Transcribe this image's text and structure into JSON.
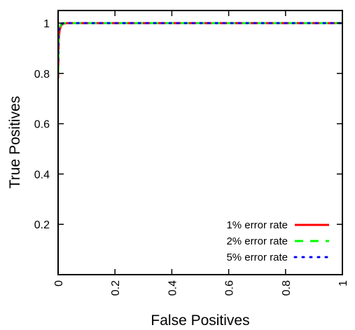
{
  "chart_data": {
    "type": "line",
    "xlabel": "False Positives",
    "ylabel": "True Positives",
    "xlim": [
      0,
      1
    ],
    "ylim": [
      0,
      1.05
    ],
    "x_ticks": [
      "0",
      "0.2",
      "0.4",
      "0.6",
      "0.8",
      "1"
    ],
    "y_ticks": [
      "0.2",
      "0.4",
      "0.6",
      "0.8",
      "1"
    ],
    "grid": false,
    "legend_position": "bottom-right",
    "series": [
      {
        "name": "1% error rate",
        "color": "#ff0000",
        "style": "solid",
        "x": [
          0,
          0.002,
          0.005,
          0.01,
          0.015,
          0.02,
          0.03,
          0.05,
          0.1,
          0.2,
          0.4,
          0.6,
          0.8,
          1.0
        ],
        "y": [
          0.78,
          0.93,
          0.97,
          0.99,
          0.995,
          0.998,
          1.0,
          1.0,
          1.0,
          1.0,
          1.0,
          1.0,
          1.0,
          1.0
        ]
      },
      {
        "name": "2% error rate",
        "color": "#00ff00",
        "style": "dashed",
        "x": [
          0,
          0.002,
          0.005,
          0.01,
          0.015,
          0.02,
          0.03,
          0.05,
          0.1,
          0.2,
          0.4,
          0.6,
          0.8,
          1.0
        ],
        "y": [
          0.8,
          0.95,
          0.98,
          0.995,
          0.998,
          1.0,
          1.0,
          1.0,
          1.0,
          1.0,
          1.0,
          1.0,
          1.0,
          1.0
        ]
      },
      {
        "name": "5% error rate",
        "color": "#0000ff",
        "style": "dotted",
        "x": [
          0,
          0.002,
          0.005,
          0.01,
          0.02,
          0.03,
          0.05,
          0.1,
          0.2,
          0.4,
          0.6,
          0.8,
          1.0
        ],
        "y": [
          0.85,
          0.97,
          0.99,
          0.998,
          1.0,
          1.0,
          1.0,
          1.0,
          1.0,
          1.0,
          1.0,
          1.0,
          1.0
        ]
      }
    ]
  }
}
